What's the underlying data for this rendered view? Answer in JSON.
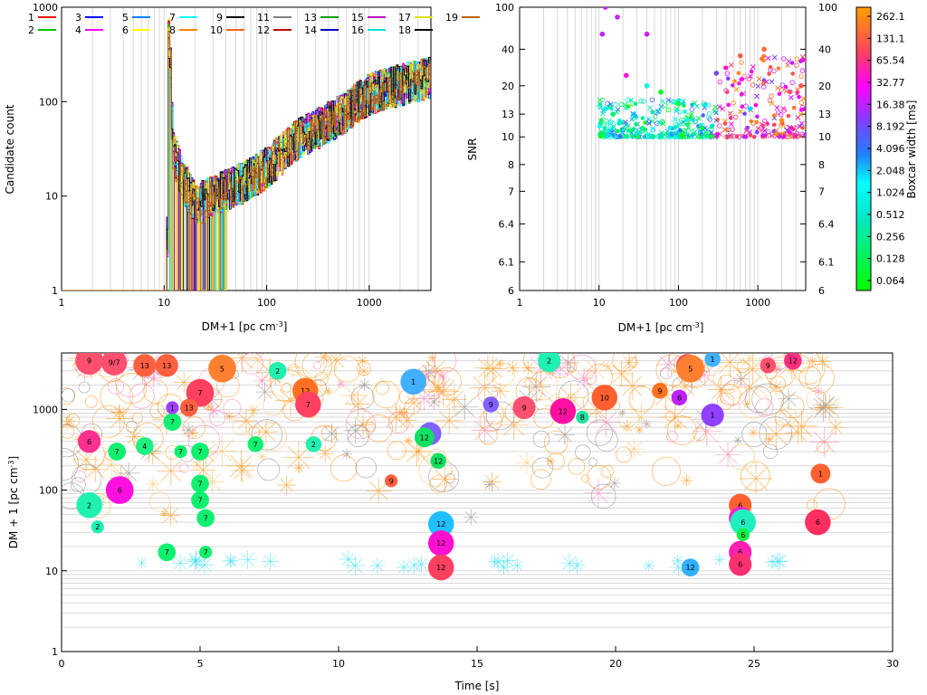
{
  "chart_data": [
    {
      "type": "line",
      "panel": "candidate-histogram",
      "xlabel": "DM+1 [pc cm",
      "xlabel_sup": "-3",
      "xlabel_end": "]",
      "ylabel": "Candidate count",
      "xscale": "log",
      "yscale": "log",
      "xlim": [
        1,
        4000
      ],
      "ylim": [
        1,
        1000
      ],
      "xticks": [
        "1",
        "10",
        "100",
        "1000"
      ],
      "yticks": [
        "1",
        "10",
        "100",
        "1000"
      ],
      "legend": [
        "1",
        "2",
        "3",
        "4",
        "5",
        "6",
        "7",
        "8",
        "9",
        "10",
        "11",
        "12",
        "13",
        "14",
        "15",
        "16",
        "17",
        "18",
        "19"
      ],
      "legend_colors": [
        "#ff0000",
        "#00c000",
        "#0000ff",
        "#ff00ff",
        "#0080ff",
        "#ffff00",
        "#00ffff",
        "#ff8000",
        "#000000",
        "#ff6020",
        "#808080",
        "#c00000",
        "#00a000",
        "#0000c0",
        "#c000c0",
        "#00e0e0",
        "#e0e000",
        "#000000",
        "#c06000"
      ],
      "profile": [
        {
          "dm": 1,
          "count": 1
        },
        {
          "dm": 10.5,
          "count": 1
        },
        {
          "dm": 11,
          "count": 700
        },
        {
          "dm": 12,
          "count": 30
        },
        {
          "dm": 15,
          "count": 15
        },
        {
          "dm": 20,
          "count": 8
        },
        {
          "dm": 30,
          "count": 10
        },
        {
          "dm": 60,
          "count": 14
        },
        {
          "dm": 100,
          "count": 20
        },
        {
          "dm": 200,
          "count": 40
        },
        {
          "dm": 500,
          "count": 70
        },
        {
          "dm": 1000,
          "count": 120
        },
        {
          "dm": 2000,
          "count": 150
        },
        {
          "dm": 4000,
          "count": 180
        }
      ]
    },
    {
      "type": "scatter",
      "panel": "snr-vs-dm",
      "xlabel": "DM+1 [pc cm",
      "xlabel_sup": "-3",
      "xlabel_end": "]",
      "ylabel": "SNR",
      "xscale": "log",
      "yscale": "log",
      "xlim": [
        1,
        4000
      ],
      "ylim": [
        6,
        100
      ],
      "xticks": [
        "1",
        "10",
        "100",
        "1000"
      ],
      "yticks": [
        "6",
        "6.1",
        "6.4",
        "7",
        "8",
        "10",
        "13",
        "20",
        "40",
        "100"
      ],
      "points": [
        {
          "dm": 12,
          "snr": 100,
          "w": 16
        },
        {
          "dm": 17,
          "snr": 80,
          "w": 16
        },
        {
          "dm": 11,
          "snr": 55,
          "w": 16
        },
        {
          "dm": 40,
          "snr": 55,
          "w": 16
        },
        {
          "dm": 22,
          "snr": 24,
          "w": 32
        },
        {
          "dm": 40,
          "snr": 20,
          "w": 1
        },
        {
          "dm": 12,
          "snr": 14,
          "w": 1
        },
        {
          "dm": 15,
          "snr": 13,
          "w": 0.2
        },
        {
          "dm": 60,
          "snr": 18,
          "w": 0.1
        },
        {
          "dm": 100,
          "snr": 15,
          "w": 0.1
        },
        {
          "dm": 300,
          "snr": 25,
          "w": 8
        },
        {
          "dm": 600,
          "snr": 35,
          "w": 100
        },
        {
          "dm": 1200,
          "snr": 40,
          "w": 130
        },
        {
          "dm": 3500,
          "snr": 20,
          "w": 100
        },
        {
          "dm": 800,
          "snr": 14,
          "w": 2
        },
        {
          "dm": 2000,
          "snr": 12,
          "w": 200
        }
      ],
      "colorbar": {
        "label": "Boxcar width [ms]",
        "ticks": [
          "262.1",
          "131.1",
          "65.54",
          "32.77",
          "16.38",
          "8.192",
          "4.096",
          "2.048",
          "1.024",
          "0.512",
          "0.256",
          "0.128",
          "0.064"
        ]
      }
    },
    {
      "type": "scatter",
      "panel": "dm-vs-time",
      "xlabel": "Time [s]",
      "ylabel": "DM + 1 [pc cm",
      "ylabel_sup": "-3",
      "ylabel_end": "]",
      "xlim": [
        0,
        30
      ],
      "ylim": [
        1,
        5000
      ],
      "yscale": "log",
      "xticks": [
        "0",
        "5",
        "10",
        "15",
        "20",
        "25",
        "30"
      ],
      "yticks": [
        "1",
        "10",
        "100",
        "1000"
      ],
      "events": [
        {
          "t": 1,
          "dm": 4000,
          "label": "9",
          "snr": 30
        },
        {
          "t": 1.9,
          "dm": 3800,
          "label": "9/7",
          "snr": 28
        },
        {
          "t": 3,
          "dm": 3500,
          "label": "13",
          "snr": 25
        },
        {
          "t": 3.8,
          "dm": 3500,
          "label": "13",
          "snr": 25
        },
        {
          "t": 5,
          "dm": 1600,
          "label": "7",
          "snr": 30
        },
        {
          "t": 5.8,
          "dm": 3200,
          "label": "5",
          "snr": 30
        },
        {
          "t": 1,
          "dm": 400,
          "label": "6",
          "snr": 25
        },
        {
          "t": 2,
          "dm": 300,
          "label": "7",
          "snr": 20
        },
        {
          "t": 2.1,
          "dm": 100,
          "label": "6",
          "snr": 30
        },
        {
          "t": 1,
          "dm": 65,
          "label": "2",
          "snr": 28
        },
        {
          "t": 1.3,
          "dm": 35,
          "label": "2",
          "snr": 15
        },
        {
          "t": 3,
          "dm": 350,
          "label": "4",
          "snr": 20
        },
        {
          "t": 4,
          "dm": 700,
          "label": "7",
          "snr": 20
        },
        {
          "t": 4,
          "dm": 1050,
          "label": "1",
          "snr": 15
        },
        {
          "t": 4.6,
          "dm": 1050,
          "label": "13",
          "snr": 20
        },
        {
          "t": 4.3,
          "dm": 300,
          "label": "7",
          "snr": 15
        },
        {
          "t": 5,
          "dm": 300,
          "label": "7",
          "snr": 20
        },
        {
          "t": 5,
          "dm": 120,
          "label": "7",
          "snr": 20
        },
        {
          "t": 5,
          "dm": 75,
          "label": "7",
          "snr": 20
        },
        {
          "t": 5.2,
          "dm": 45,
          "label": "7",
          "snr": 20
        },
        {
          "t": 3.8,
          "dm": 17,
          "label": "7",
          "snr": 20
        },
        {
          "t": 5.2,
          "dm": 17,
          "label": "7",
          "snr": 15
        },
        {
          "t": 7,
          "dm": 370,
          "label": "7",
          "snr": 18
        },
        {
          "t": 7.8,
          "dm": 3000,
          "label": "2",
          "snr": 20
        },
        {
          "t": 8.8,
          "dm": 1700,
          "label": "12",
          "snr": 28
        },
        {
          "t": 8.9,
          "dm": 1150,
          "label": "7",
          "snr": 28
        },
        {
          "t": 9.1,
          "dm": 370,
          "label": "2",
          "snr": 18
        },
        {
          "t": 11.9,
          "dm": 130,
          "label": "9",
          "snr": 15
        },
        {
          "t": 12.7,
          "dm": 2200,
          "label": "1",
          "snr": 28
        },
        {
          "t": 13.3,
          "dm": 500,
          "label": "1",
          "snr": 25
        },
        {
          "t": 13.1,
          "dm": 450,
          "label": "12",
          "snr": 22
        },
        {
          "t": 13.6,
          "dm": 230,
          "label": "12",
          "snr": 18
        },
        {
          "t": 13.7,
          "dm": 38,
          "label": "12",
          "snr": 28
        },
        {
          "t": 13.7,
          "dm": 22,
          "label": "12",
          "snr": 28
        },
        {
          "t": 13.7,
          "dm": 11,
          "label": "12",
          "snr": 28
        },
        {
          "t": 15.5,
          "dm": 1150,
          "label": "9",
          "snr": 18
        },
        {
          "t": 16.7,
          "dm": 1050,
          "label": "9",
          "snr": 25
        },
        {
          "t": 17.6,
          "dm": 4000,
          "label": "2",
          "snr": 25
        },
        {
          "t": 18.1,
          "dm": 950,
          "label": "12",
          "snr": 28
        },
        {
          "t": 18.8,
          "dm": 800,
          "label": "8",
          "snr": 15
        },
        {
          "t": 19.6,
          "dm": 1400,
          "label": "10",
          "snr": 28
        },
        {
          "t": 21.6,
          "dm": 1700,
          "label": "9",
          "snr": 18
        },
        {
          "t": 22.3,
          "dm": 1400,
          "label": "6",
          "snr": 18
        },
        {
          "t": 22.6,
          "dm": 3500,
          "label": "12",
          "snr": 25
        },
        {
          "t": 22.7,
          "dm": 3200,
          "label": "5",
          "snr": 30
        },
        {
          "t": 23.5,
          "dm": 4200,
          "label": "1",
          "snr": 18
        },
        {
          "t": 23.5,
          "dm": 850,
          "label": "1",
          "snr": 25
        },
        {
          "t": 22.7,
          "dm": 11,
          "label": "12",
          "snr": 20
        },
        {
          "t": 24.5,
          "dm": 65,
          "label": "6",
          "snr": 25
        },
        {
          "t": 24.5,
          "dm": 45,
          "label": "6",
          "snr": 25
        },
        {
          "t": 24.6,
          "dm": 40,
          "label": "6",
          "snr": 28
        },
        {
          "t": 24.6,
          "dm": 28,
          "label": "6",
          "snr": 15
        },
        {
          "t": 24.5,
          "dm": 17,
          "label": "6",
          "snr": 25
        },
        {
          "t": 24.5,
          "dm": 12,
          "label": "6",
          "snr": 25
        },
        {
          "t": 25.5,
          "dm": 3500,
          "label": "9",
          "snr": 18
        },
        {
          "t": 26.4,
          "dm": 4000,
          "label": "12",
          "snr": 20
        },
        {
          "t": 27.4,
          "dm": 160,
          "label": "1",
          "snr": 22
        },
        {
          "t": 27.3,
          "dm": 40,
          "label": "6",
          "snr": 28
        }
      ]
    }
  ]
}
